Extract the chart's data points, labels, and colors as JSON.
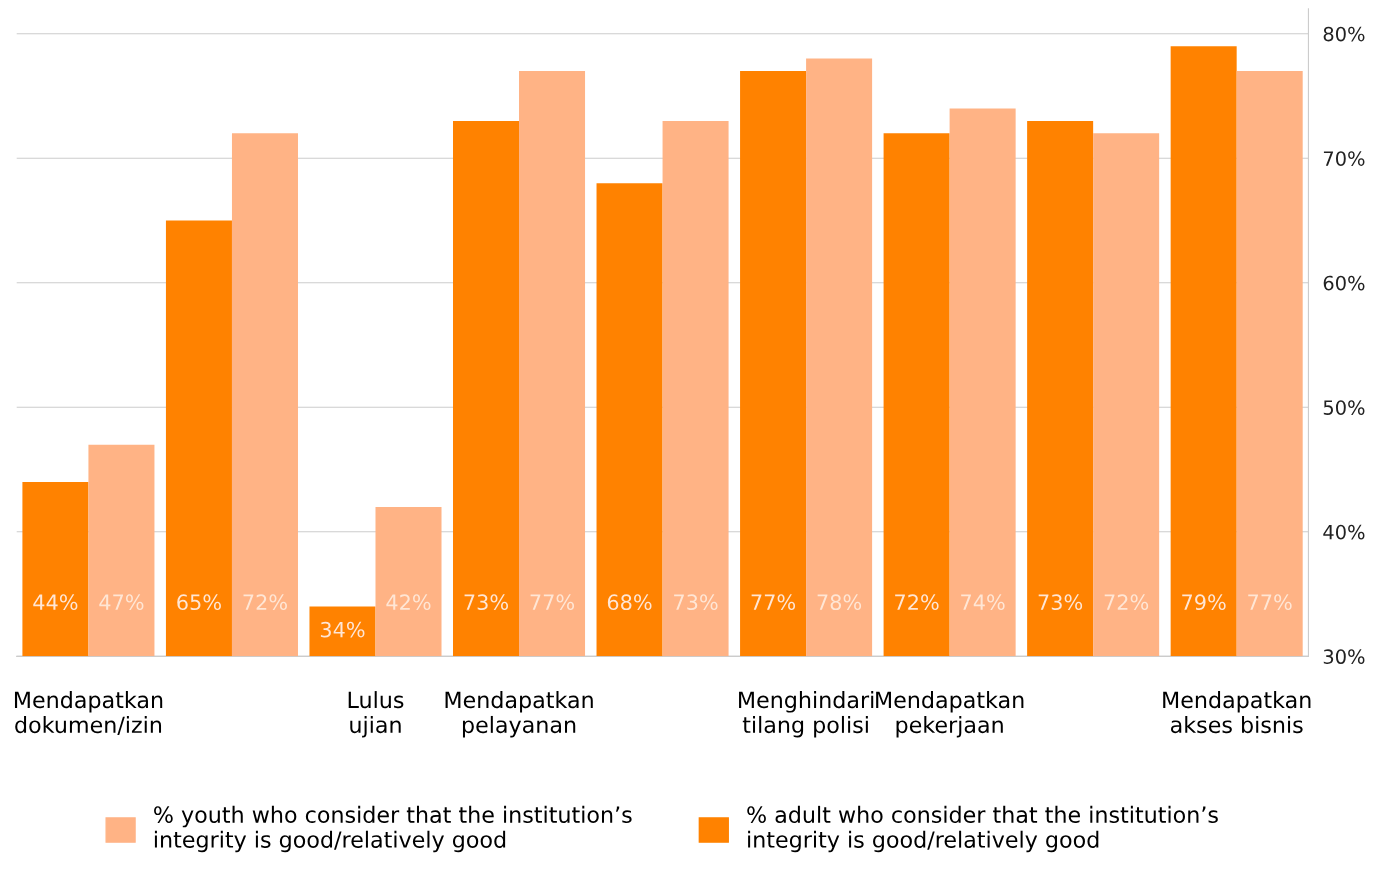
{
  "chart_data": {
    "type": "bar",
    "categories": [
      "Mendapatkan dokumen/izin",
      null,
      "Lulus ujian",
      "Mendapatkan pelayanan",
      null,
      "Menghindari tilang polisi",
      "Mendapatkan pekerjaan",
      null,
      "Mendapatkan akses bisnis"
    ],
    "series": [
      {
        "name": "% adult who consider that the institution’s integrity is good/relatively good",
        "color": "#ff8200",
        "values": [
          44,
          65,
          34,
          73,
          68,
          77,
          72,
          73,
          79
        ],
        "value_labels": [
          "44%",
          "65%",
          "34%",
          "73%",
          "68%",
          "77%",
          "72%",
          "73%",
          "79%"
        ]
      },
      {
        "name": "% youth who consider that the institution’s integrity is good/relatively good",
        "color": "#ffb385",
        "values": [
          47,
          72,
          42,
          77,
          73,
          78,
          74,
          72,
          77
        ],
        "value_labels": [
          "47%",
          "72%",
          "42%",
          "77%",
          "73%",
          "78%",
          "74%",
          "72%",
          "77%"
        ]
      }
    ],
    "ylim": [
      30,
      82
    ],
    "yticks": [
      {
        "value": 30,
        "label": "30%"
      },
      {
        "value": 40,
        "label": "40%"
      },
      {
        "value": 50,
        "label": "50%"
      },
      {
        "value": 60,
        "label": "60%"
      },
      {
        "value": 70,
        "label": "70%"
      },
      {
        "value": 80,
        "label": "80%"
      }
    ],
    "grid": "y",
    "legend": "bottom"
  }
}
